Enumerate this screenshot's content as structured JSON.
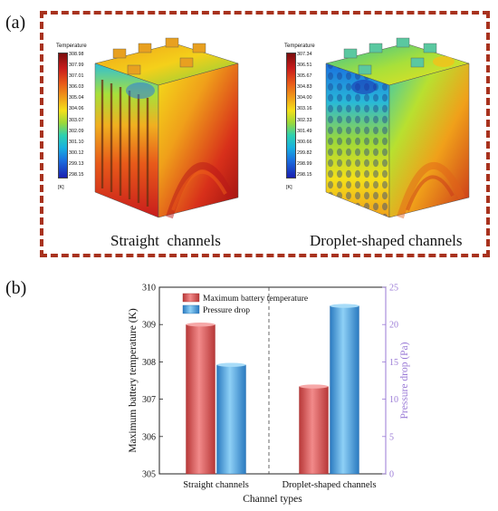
{
  "panel_a": {
    "label": "(a)",
    "left_model": {
      "caption": "Straight  channels",
      "legend_title": "Temperature",
      "legend_unit": "[K]",
      "legend_ticks": [
        "308.98",
        "307.99",
        "307.01",
        "306.03",
        "305.04",
        "304.06",
        "303.07",
        "302.09",
        "301.10",
        "300.12",
        "299.13",
        "298.15"
      ]
    },
    "right_model": {
      "caption": "Droplet-shaped channels",
      "legend_title": "Temperature",
      "legend_unit": "[K]",
      "legend_ticks": [
        "307.34",
        "306.51",
        "305.67",
        "304.83",
        "304.00",
        "303.16",
        "302.33",
        "301.49",
        "300.66",
        "299.82",
        "298.99",
        "298.15"
      ]
    },
    "frame_color": "#a8321e"
  },
  "panel_b": {
    "label": "(b)"
  },
  "chart_data": {
    "type": "bar",
    "categories": [
      "Straight  channels",
      "Droplet-shaped channels"
    ],
    "series": [
      {
        "name": "Maximum battery temperature",
        "axis": "left",
        "color": "#e06464",
        "values": [
          309.0,
          307.34
        ]
      },
      {
        "name": "Pressure drop",
        "axis": "right",
        "color": "#5aaee8",
        "values": [
          14.6,
          22.5
        ]
      }
    ],
    "xlabel": "Channel types",
    "ylabel": "Maximum battery temperature (K)",
    "y2label": "Pressure drop (Pa)",
    "ylim": [
      305,
      310
    ],
    "y2lim": [
      0,
      25
    ],
    "yticks": [
      "305",
      "306",
      "307",
      "308",
      "309",
      "310"
    ],
    "y2ticks": [
      "0",
      "5",
      "10",
      "15",
      "20",
      "25"
    ],
    "y2_color": "#9a7ad6",
    "legend_position": "top-left",
    "grid": false
  }
}
